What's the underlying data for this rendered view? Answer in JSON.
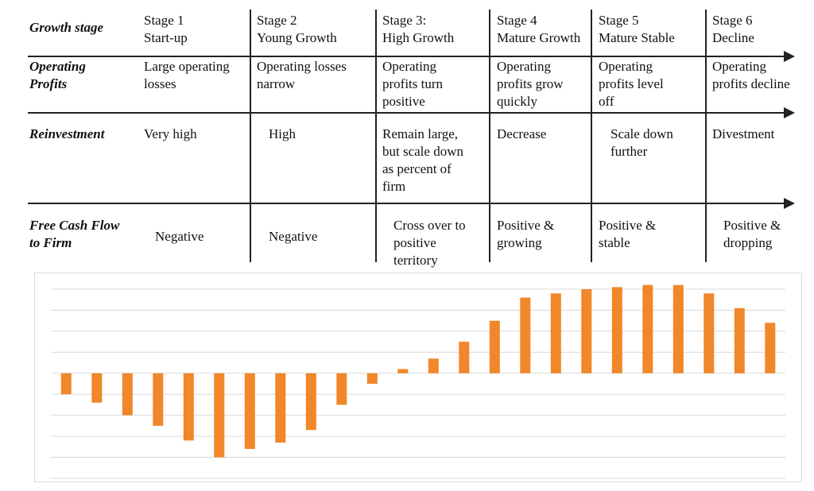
{
  "table": {
    "row_labels": {
      "growth": "Growth stage",
      "profits": "Operating\nProfits",
      "reinvestment": "Reinvestment",
      "fcff": "Free Cash Flow\nto Firm"
    },
    "stages": [
      {
        "title": "Stage 1\nStart-up",
        "profits": "Large operating\nlosses",
        "reinvestment": "Very high",
        "fcff": "Negative"
      },
      {
        "title": "Stage 2\nYoung Growth",
        "profits": "Operating losses\nnarrow",
        "reinvestment": "High",
        "fcff": "Negative"
      },
      {
        "title": "Stage 3:\nHigh Growth",
        "profits": "Operating\nprofits turn\npositive",
        "reinvestment": "Remain large,\nbut scale down\nas percent of\nfirm",
        "fcff": "Cross over to\npositive\nterritory"
      },
      {
        "title": "Stage 4\nMature Growth",
        "profits": "Operating\nprofits grow\nquickly",
        "reinvestment": "Decrease",
        "fcff": "Positive &\ngrowing"
      },
      {
        "title": "Stage 5\nMature Stable",
        "profits": "Operating\nprofits level\noff",
        "reinvestment": "Scale down\nfurther",
        "fcff": "Positive &\nstable"
      },
      {
        "title": "Stage 6\nDecline",
        "profits": "Operating\nprofits decline",
        "reinvestment": "Divestment",
        "fcff": "Positive &\ndropping"
      }
    ]
  },
  "colors": {
    "bar": "#f0872a",
    "grid": "#d9d9d9",
    "line": "#222222"
  },
  "chart_data": {
    "type": "bar",
    "title": "",
    "xlabel": "",
    "ylabel": "",
    "grid": true,
    "ylim": [
      -5,
      4
    ],
    "values": [
      -1,
      -1.4,
      -2,
      -2.5,
      -3.2,
      -4,
      -3.6,
      -3.3,
      -2.7,
      -1.5,
      -0.5,
      0.2,
      0.7,
      1.5,
      2.5,
      3.6,
      3.8,
      4,
      4.1,
      4.2,
      4.2,
      3.8,
      3.1,
      2.4
    ]
  }
}
